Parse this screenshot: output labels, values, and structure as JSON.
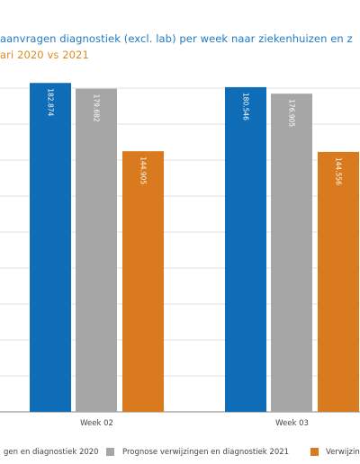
{
  "chart_data": {
    "type": "bar",
    "title": "aanvragen diagnostiek (excl. lab) per week naar ziekenhuizen en z",
    "subtitle": "ari 2020 vs 2021",
    "categories": [
      "Week 02",
      "Week 03"
    ],
    "series": [
      {
        "name": "gen en diagnostiek 2020",
        "color": "#0f6cb6",
        "values": [
          182874,
          180546
        ],
        "labels": [
          "182.874",
          "180.546"
        ]
      },
      {
        "name": "Prognose verwijzingen en diagnostiek 2021",
        "color": "#a6a6a6",
        "values": [
          179682,
          176905
        ],
        "labels": [
          "179.682",
          "176.905"
        ]
      },
      {
        "name": "Verwijzing",
        "color": "#d97a1e",
        "values": [
          144905,
          144556
        ],
        "labels": [
          "144.905",
          "144.556"
        ]
      }
    ],
    "ylim": [
      0,
      180000
    ],
    "grid": true,
    "legend": "bottom"
  }
}
